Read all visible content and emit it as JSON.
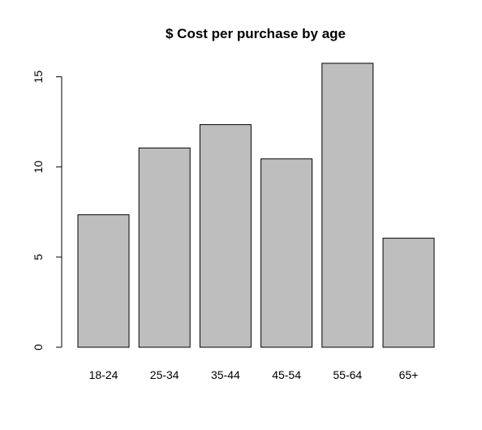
{
  "chart_data": {
    "type": "bar",
    "title": "$ Cost per purchase by age",
    "xlabel": "",
    "ylabel": "",
    "categories": [
      "18-24",
      "25-34",
      "35-44",
      "45-54",
      "55-64",
      "65+"
    ],
    "values": [
      7.35,
      11.05,
      12.35,
      10.45,
      15.75,
      6.05
    ],
    "ylim": [
      0,
      15.75
    ],
    "yticks": [
      0,
      5,
      10,
      15
    ],
    "bar_color": "#bebebe",
    "grid": false,
    "legend": "none"
  }
}
